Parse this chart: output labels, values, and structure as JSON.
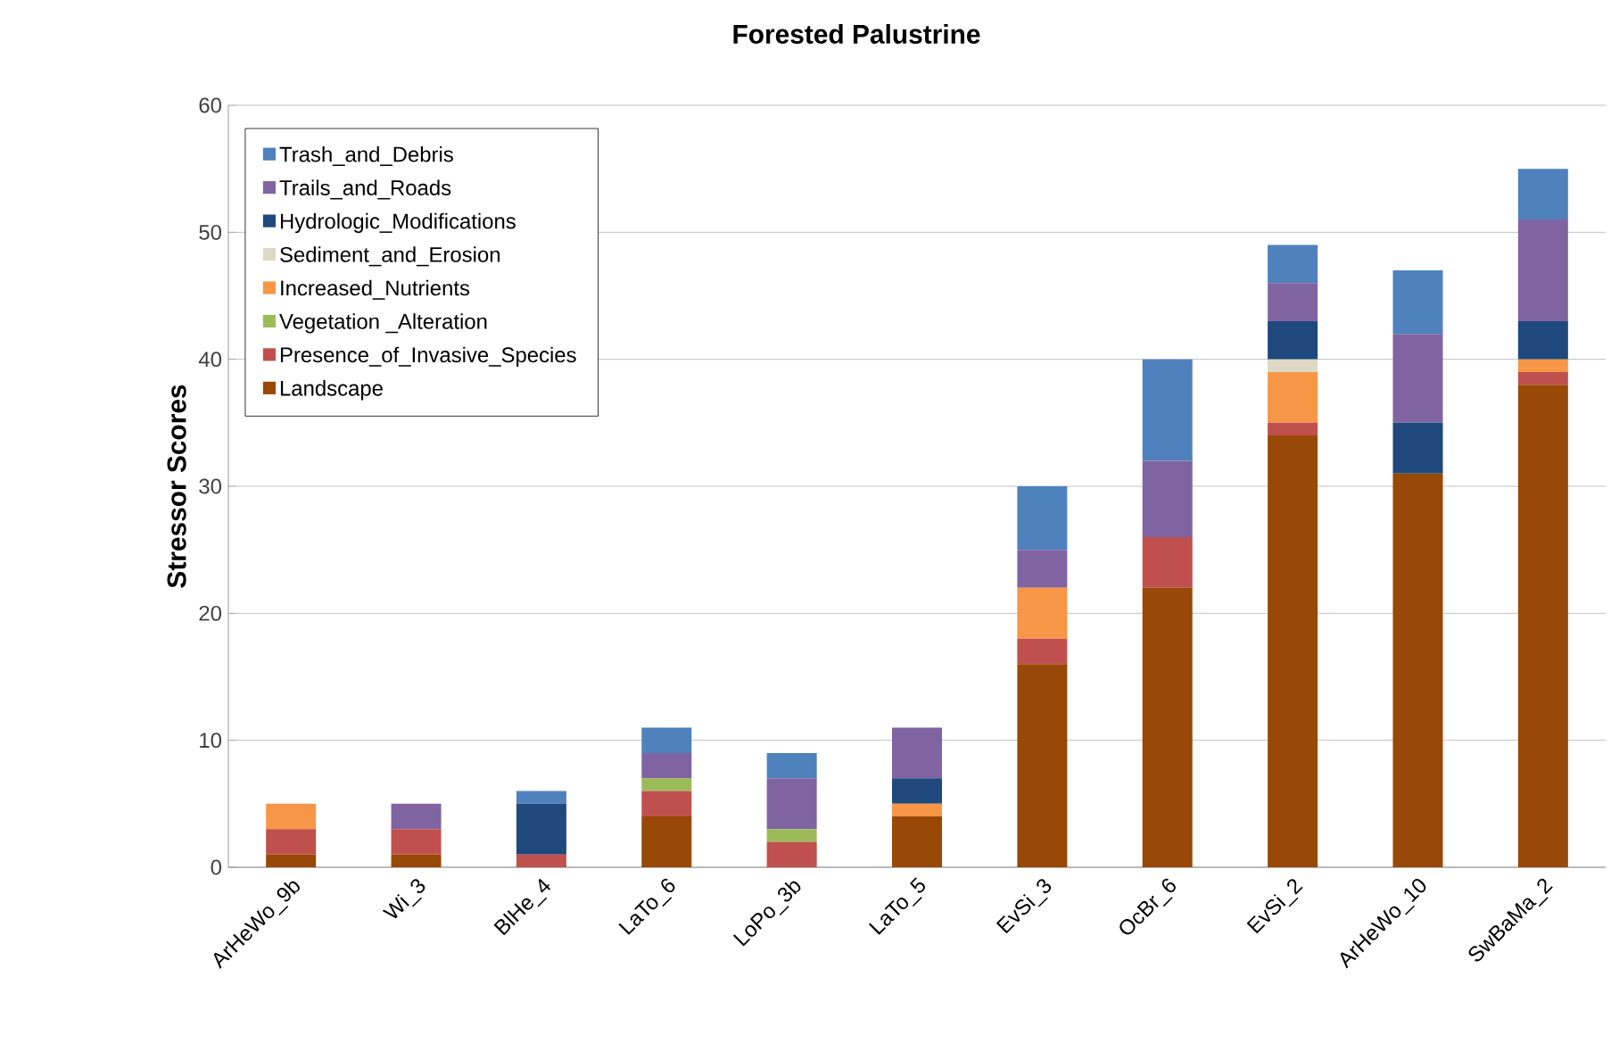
{
  "chart_data": {
    "type": "bar",
    "stacked": true,
    "title": "Forested Palustrine",
    "ylabel": "Stressor Scores",
    "categories": [
      "ArHeWo_9b",
      "Wi_3",
      "BlHe_4",
      "LaTo_6",
      "LoPo_3b",
      "LaTo_5",
      "EvSi_3",
      "OcBr_6",
      "EvSi_2",
      "ArHeWo_10",
      "SwBaMa_2"
    ],
    "series": [
      {
        "name": "Landscape",
        "color": "#984807",
        "values": [
          1,
          1,
          0,
          4,
          0,
          4,
          16,
          22,
          34,
          31,
          38
        ]
      },
      {
        "name": "Presence_of_Invasive_Species",
        "color": "#c0504d",
        "values": [
          2,
          2,
          1,
          2,
          2,
          0,
          2,
          4,
          1,
          0,
          1
        ]
      },
      {
        "name": "Vegetation _Alteration",
        "color": "#9bbb59",
        "values": [
          0,
          0,
          0,
          1,
          1,
          0,
          0,
          0,
          0,
          0,
          0
        ]
      },
      {
        "name": "Increased_Nutrients",
        "color": "#f79646",
        "values": [
          2,
          0,
          0,
          0,
          0,
          1,
          4,
          0,
          4,
          0,
          1
        ]
      },
      {
        "name": "Sediment_and_Erosion",
        "color": "#ddd9c3",
        "values": [
          0,
          0,
          0,
          0,
          0,
          0,
          0,
          0,
          1,
          0,
          0
        ]
      },
      {
        "name": "Hydrologic_Modifications",
        "color": "#1f497d",
        "values": [
          0,
          0,
          4,
          0,
          0,
          2,
          0,
          0,
          3,
          4,
          3
        ]
      },
      {
        "name": "Trails_and_Roads",
        "color": "#8064a2",
        "values": [
          0,
          2,
          0,
          2,
          4,
          4,
          3,
          6,
          3,
          7,
          8
        ]
      },
      {
        "name": "Trash_and_Debris",
        "color": "#4f81bd",
        "values": [
          0,
          0,
          1,
          2,
          2,
          0,
          5,
          8,
          3,
          5,
          4
        ]
      }
    ],
    "ylim": [
      0,
      60
    ],
    "yticks": [
      0,
      10,
      20,
      30,
      40,
      50,
      60
    ],
    "grid": "y",
    "legend": "top left"
  }
}
